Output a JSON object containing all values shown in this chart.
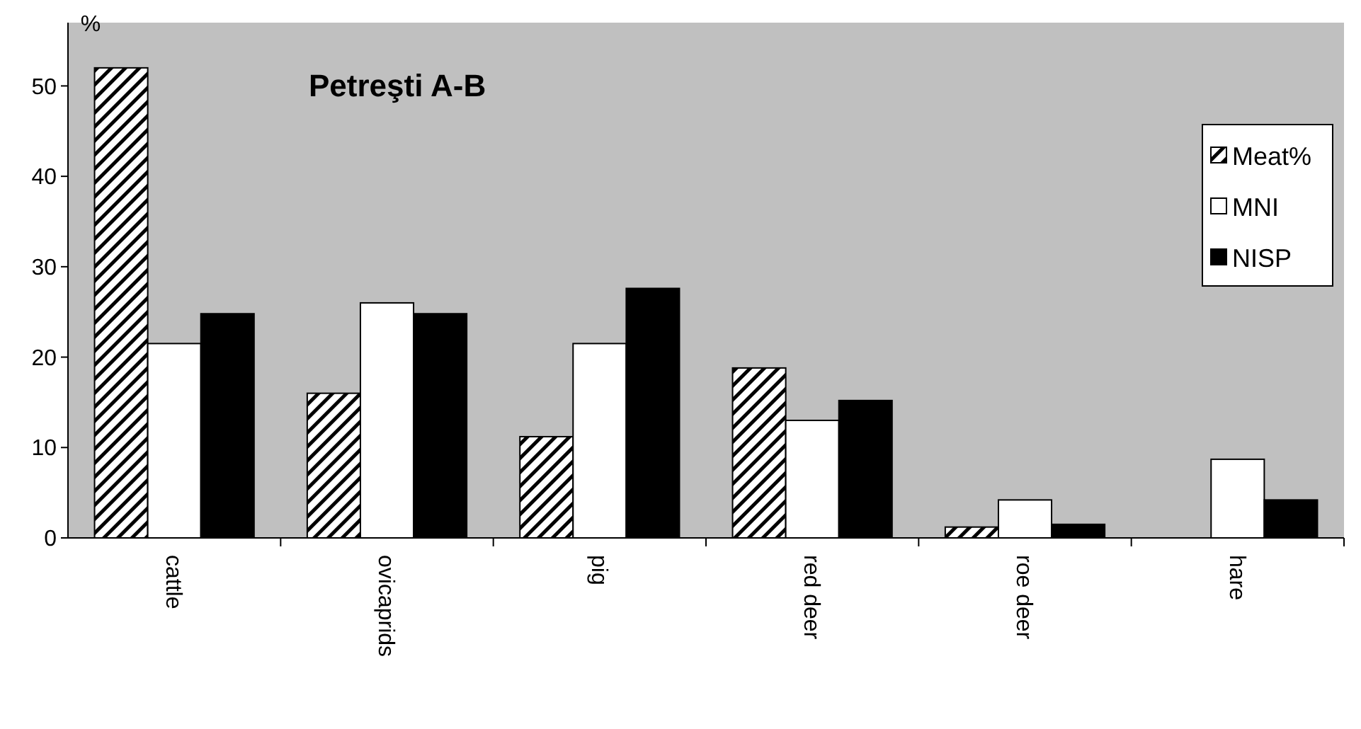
{
  "chart_data": {
    "type": "bar",
    "title": "Petreşti A-B",
    "ylabel": "%",
    "categories": [
      "cattle",
      "ovicaprids",
      "pig",
      "red deer",
      "roe deer",
      "hare"
    ],
    "series": [
      {
        "name": "Meat%",
        "color": "#000000",
        "values": [
          52,
          16,
          11.2,
          18.8,
          1.2,
          null
        ]
      },
      {
        "name": "MNI",
        "color": "#ffffff",
        "values": [
          21.5,
          26,
          21.5,
          13,
          4.2,
          8.7
        ]
      },
      {
        "name": "NISP",
        "color": "#000000",
        "values": [
          24.8,
          24.8,
          27.6,
          15.2,
          1.5,
          4.2
        ]
      }
    ],
    "ylim": [
      0,
      57
    ],
    "yticks": [
      0,
      10,
      20,
      30,
      40,
      50
    ],
    "legend": "top right",
    "grid": false
  }
}
